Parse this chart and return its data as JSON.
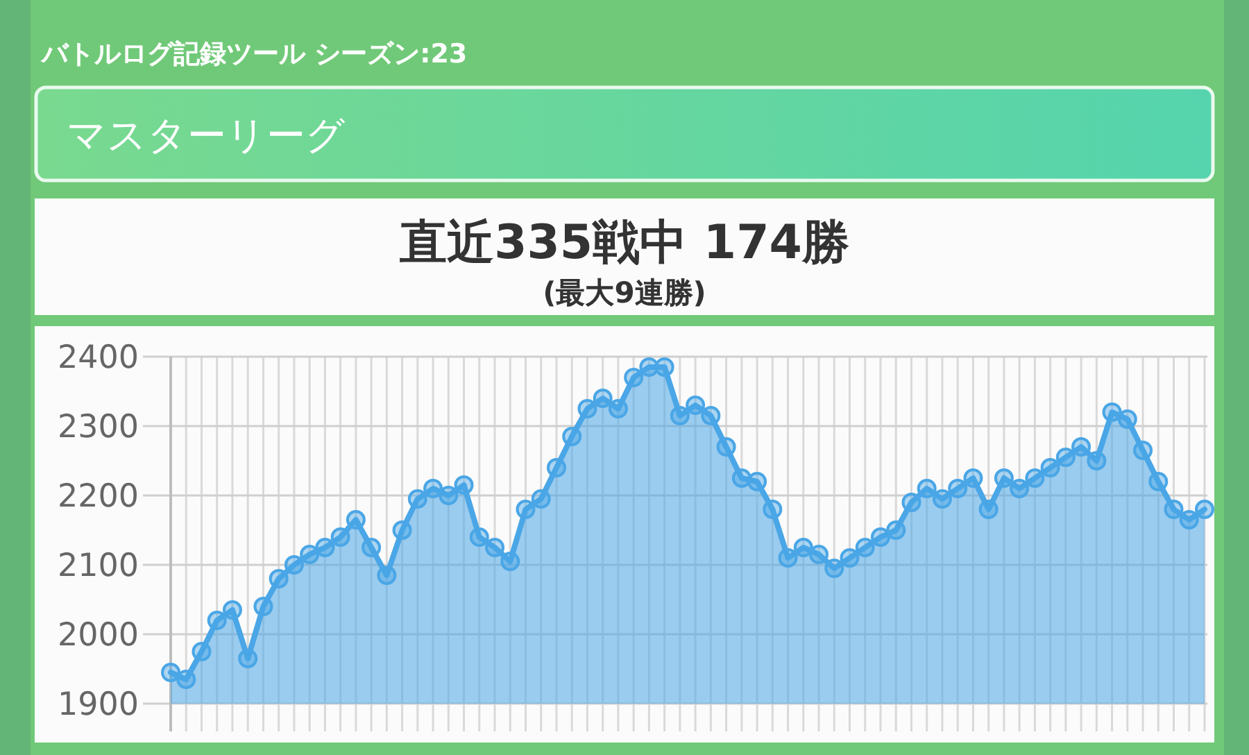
{
  "chart_data": {
    "type": "area",
    "title": "バトルログ記録ツール シーズン:23",
    "subtitle": "マスターリーグ",
    "annotations": [
      "直近335戦中 174勝",
      "(最大9連勝)"
    ],
    "categories": [
      null,
      null,
      null,
      null,
      null,
      null,
      null,
      null,
      null,
      null,
      null,
      null,
      null,
      null,
      null,
      null,
      null,
      null,
      null,
      null,
      null,
      null,
      null,
      null,
      null,
      null,
      null,
      null,
      null,
      null,
      null,
      null,
      null,
      null,
      null,
      null,
      null,
      null,
      null,
      null,
      null,
      null,
      null,
      null,
      null,
      null,
      null,
      null,
      null,
      null,
      null,
      null,
      null,
      null,
      null,
      null,
      null,
      null,
      null,
      null,
      null,
      null,
      null,
      null,
      null,
      null,
      null,
      null
    ],
    "values": [
      1945,
      1935,
      1975,
      2020,
      2035,
      1965,
      2040,
      2080,
      2100,
      2115,
      2125,
      2140,
      2165,
      2125,
      2085,
      2150,
      2195,
      2210,
      2200,
      2215,
      2140,
      2125,
      2105,
      2180,
      2195,
      2240,
      2285,
      2325,
      2340,
      2325,
      2370,
      2385,
      2385,
      2315,
      2330,
      2315,
      2270,
      2225,
      2220,
      2180,
      2110,
      2125,
      2115,
      2095,
      2110,
      2125,
      2140,
      2150,
      2190,
      2210,
      2195,
      2210,
      2225,
      2180,
      2225,
      2210,
      2225,
      2240,
      2255,
      2270,
      2250,
      2320,
      2310,
      2265,
      2220,
      2180,
      2165,
      2180
    ],
    "color": "#4aa6e6",
    "ylim": [
      1900,
      2400
    ],
    "yticks": [
      1900,
      2000,
      2100,
      2200,
      2300,
      2400
    ],
    "grid": true,
    "marker": "circle"
  }
}
